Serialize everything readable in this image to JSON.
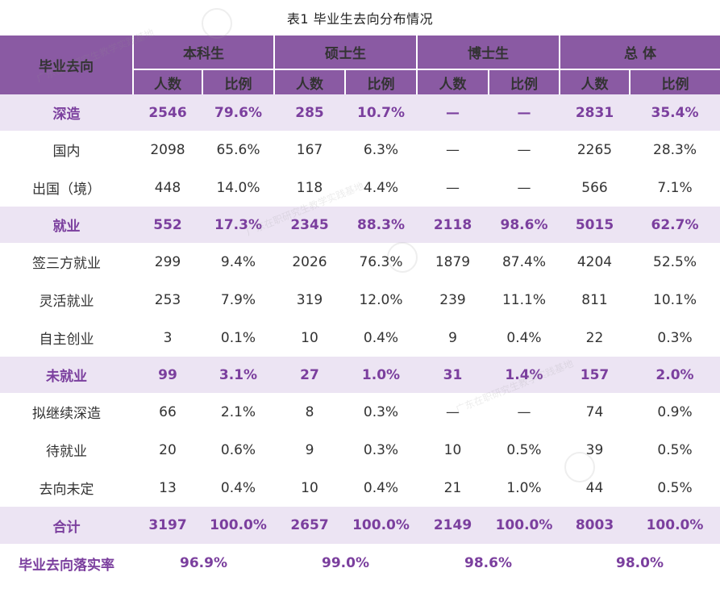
{
  "title": "表1  毕业生去向分布情况",
  "header": {
    "corner": "毕业去向",
    "groups": [
      "本科生",
      "硕士生",
      "博士生",
      "总  体"
    ],
    "sub": [
      "人数",
      "比例"
    ]
  },
  "rows": [
    {
      "kind": "cat",
      "label": "深造",
      "cells": [
        "2546",
        "79.6%",
        "285",
        "10.7%",
        "—",
        "—",
        "2831",
        "35.4%"
      ]
    },
    {
      "kind": "sub",
      "label": "国内",
      "cells": [
        "2098",
        "65.6%",
        "167",
        "6.3%",
        "—",
        "—",
        "2265",
        "28.3%"
      ]
    },
    {
      "kind": "sub",
      "label": "出国（境）",
      "cells": [
        "448",
        "14.0%",
        "118",
        "4.4%",
        "—",
        "—",
        "566",
        "7.1%"
      ]
    },
    {
      "kind": "cat",
      "label": "就业",
      "cells": [
        "552",
        "17.3%",
        "2345",
        "88.3%",
        "2118",
        "98.6%",
        "5015",
        "62.7%"
      ]
    },
    {
      "kind": "sub",
      "label": "签三方就业",
      "cells": [
        "299",
        "9.4%",
        "2026",
        "76.3%",
        "1879",
        "87.4%",
        "4204",
        "52.5%"
      ]
    },
    {
      "kind": "sub",
      "label": "灵活就业",
      "cells": [
        "253",
        "7.9%",
        "319",
        "12.0%",
        "239",
        "11.1%",
        "811",
        "10.1%"
      ]
    },
    {
      "kind": "sub",
      "label": "自主创业",
      "cells": [
        "3",
        "0.1%",
        "10",
        "0.4%",
        "9",
        "0.4%",
        "22",
        "0.3%"
      ]
    },
    {
      "kind": "cat",
      "label": "未就业",
      "cells": [
        "99",
        "3.1%",
        "27",
        "1.0%",
        "31",
        "1.4%",
        "157",
        "2.0%"
      ]
    },
    {
      "kind": "sub",
      "label": "拟继续深造",
      "cells": [
        "66",
        "2.1%",
        "8",
        "0.3%",
        "—",
        "—",
        "74",
        "0.9%"
      ]
    },
    {
      "kind": "sub",
      "label": "待就业",
      "cells": [
        "20",
        "0.6%",
        "9",
        "0.3%",
        "10",
        "0.5%",
        "39",
        "0.5%"
      ]
    },
    {
      "kind": "sub",
      "label": "去向未定",
      "cells": [
        "13",
        "0.4%",
        "10",
        "0.4%",
        "21",
        "1.0%",
        "44",
        "0.5%"
      ]
    },
    {
      "kind": "total",
      "label": "合计",
      "cells": [
        "3197",
        "100.0%",
        "2657",
        "100.0%",
        "2149",
        "100.0%",
        "8003",
        "100.0%"
      ]
    }
  ],
  "rate": {
    "label": "毕业去向落实率",
    "values": [
      "96.9%",
      "99.0%",
      "98.6%",
      "98.0%"
    ]
  },
  "watermark": "广东在职研究生教学实践基地",
  "colors": {
    "header_bg": "#8a5aa3",
    "accent_text": "#7b3f9e",
    "band_bg": "#ece4f3"
  }
}
